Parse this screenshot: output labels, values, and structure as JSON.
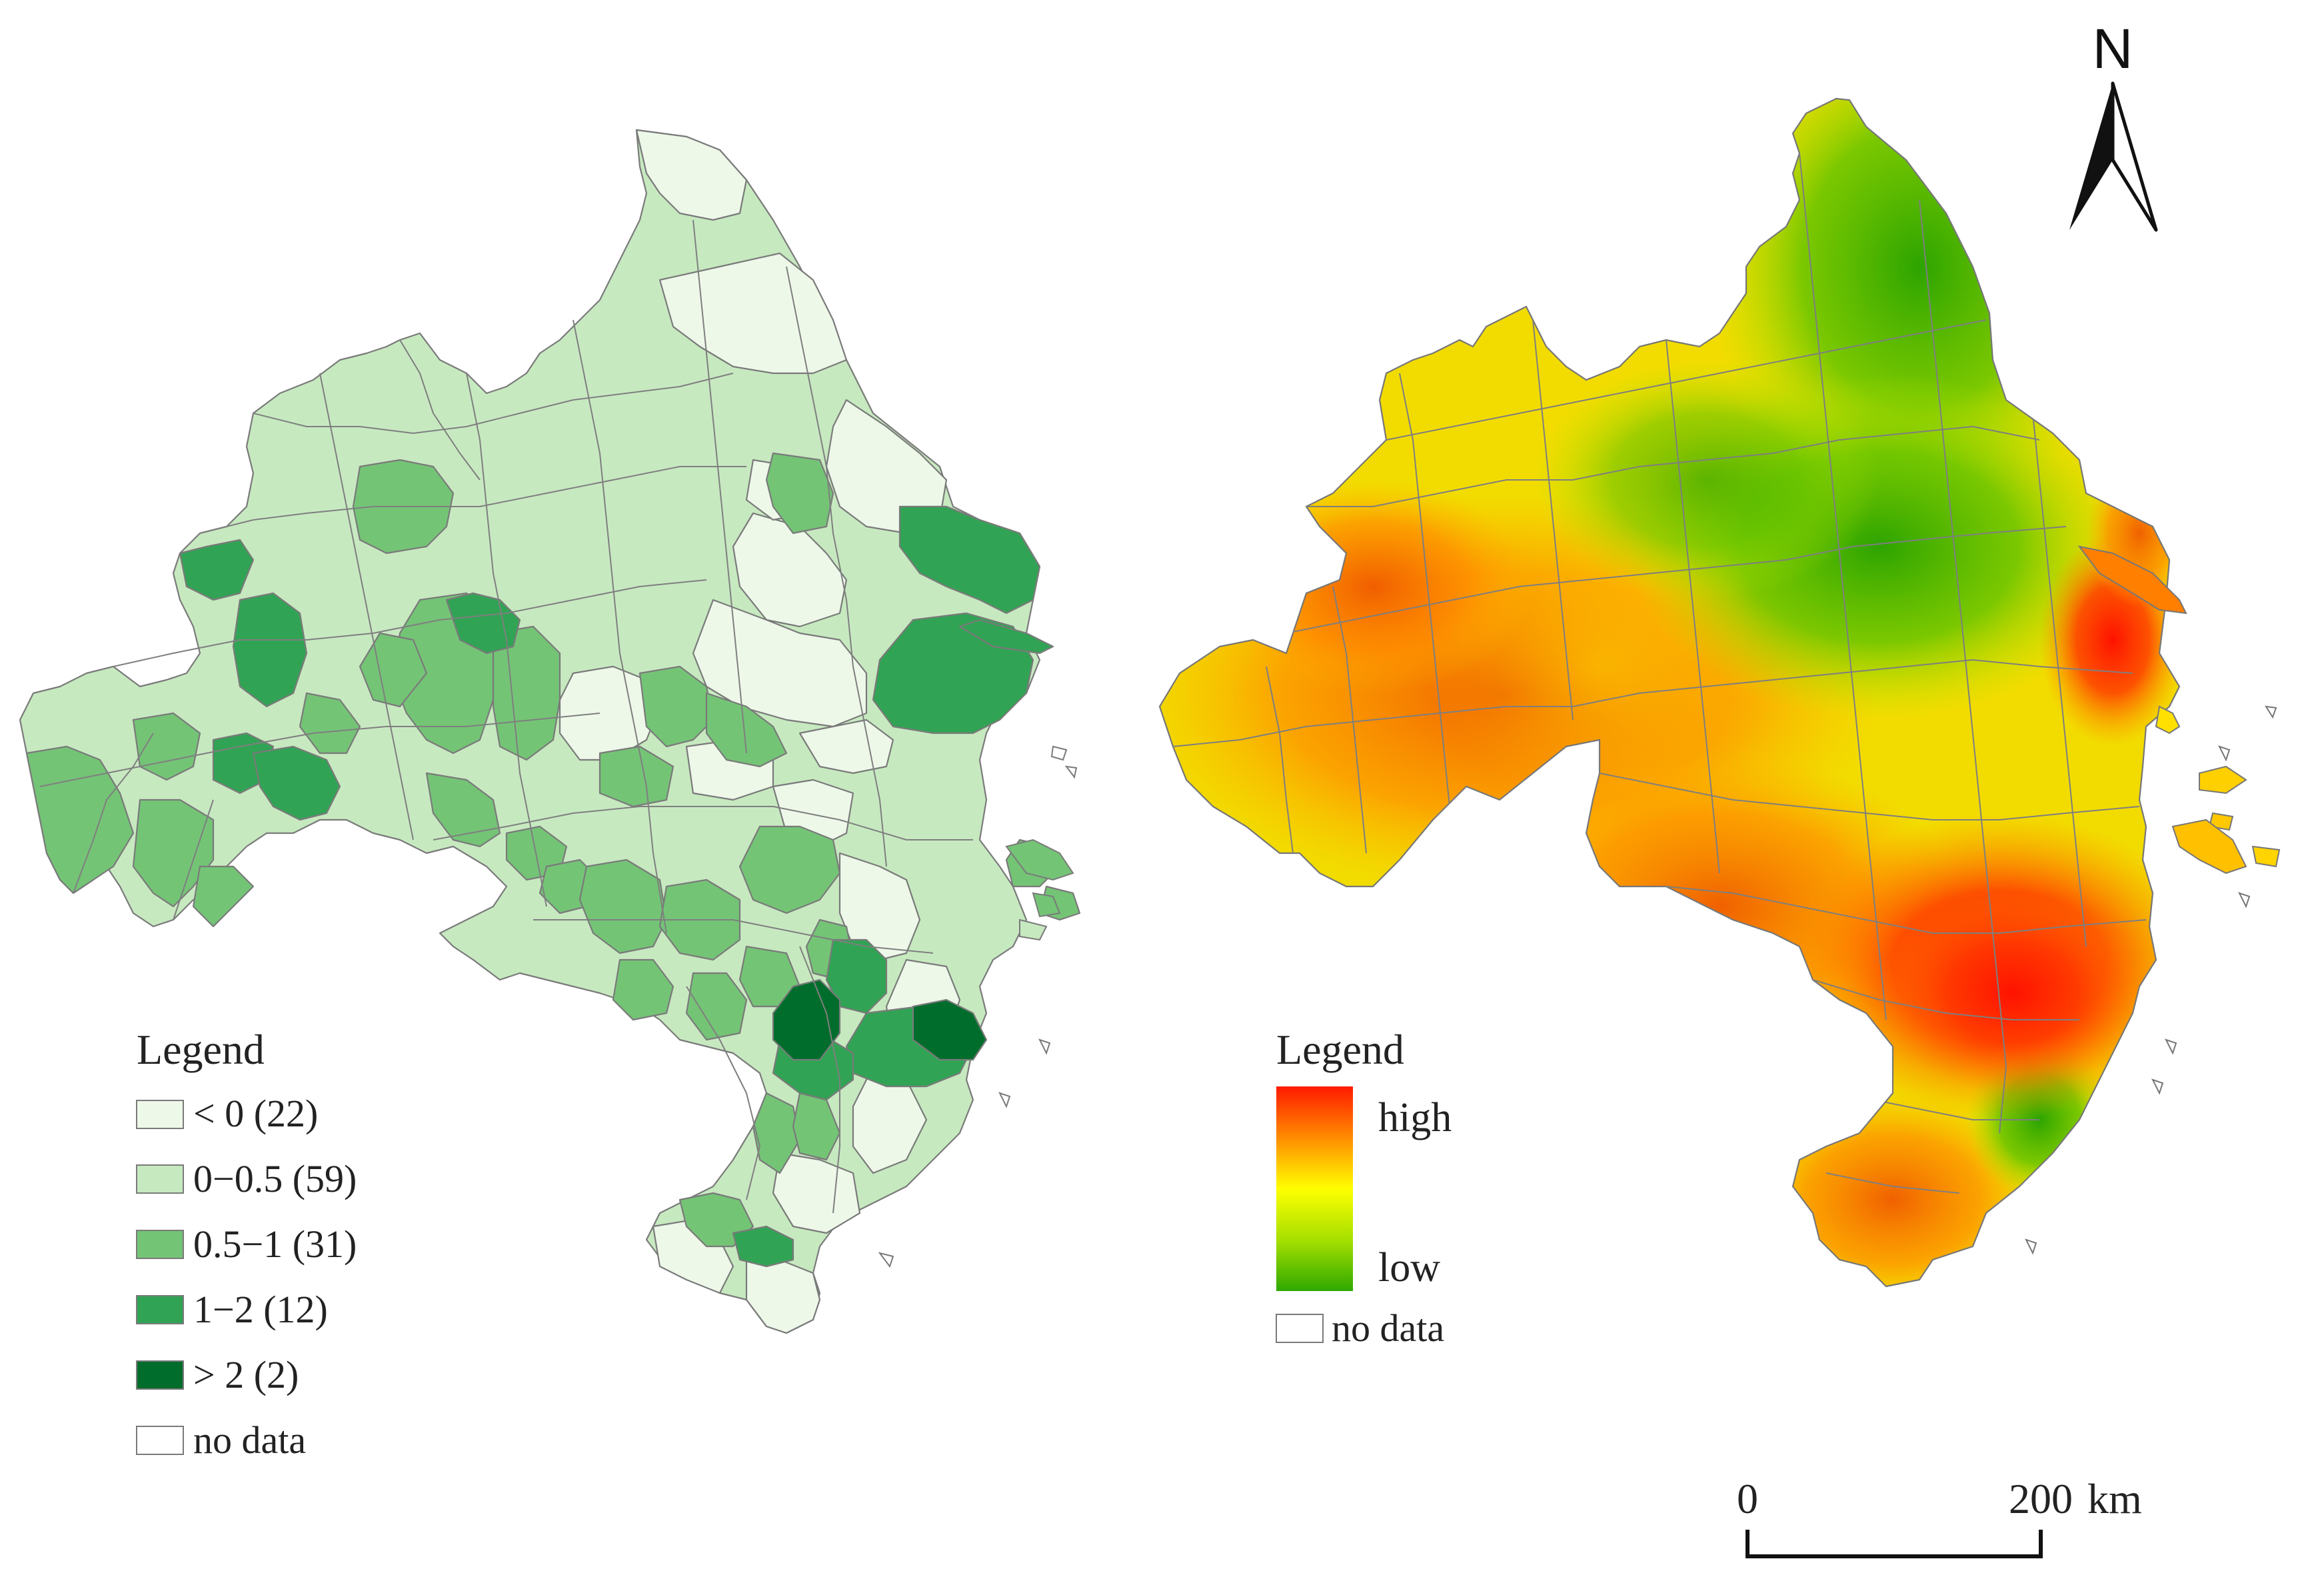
{
  "left_map": {
    "legend": {
      "title": "Legend",
      "classes": [
        {
          "label": "< 0 (22)",
          "color": "#edf8e9"
        },
        {
          "label": "0−0.5 (59)",
          "color": "#c7e9c0"
        },
        {
          "label": "0.5−1 (31)",
          "color": "#74c476"
        },
        {
          "label": "1−2 (12)",
          "color": "#31a354"
        },
        {
          "label": "> 2 (2)",
          "color": "#006d2c"
        }
      ],
      "no_data": {
        "label": "no data",
        "color": "#ffffff"
      }
    }
  },
  "right_map": {
    "legend": {
      "title": "Legend",
      "high_label": "high",
      "low_label": "low",
      "no_data_label": "no data",
      "gradient_colors": [
        "#ff1a00",
        "#ff8c00",
        "#ffff00",
        "#a6e000",
        "#2ea800"
      ]
    }
  },
  "north_arrow": {
    "label": "N"
  },
  "scale_bar": {
    "start_label": "0",
    "end_label": "200",
    "unit": "km"
  }
}
